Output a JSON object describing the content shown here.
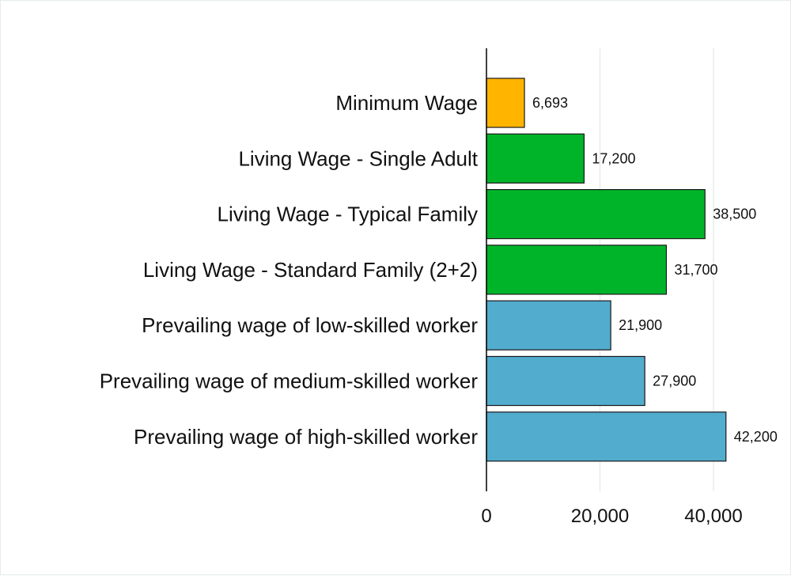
{
  "chart_data": {
    "type": "bar",
    "orientation": "horizontal",
    "title": "",
    "xlabel": "",
    "ylabel": "",
    "categories": [
      "Minimum Wage",
      "Living Wage - Single Adult",
      "Living Wage - Typical Family",
      "Living Wage - Standard Family (2+2)",
      "Prevailing wage of low-skilled worker",
      "Prevailing wage of medium-skilled worker",
      "Prevailing wage of high-skilled worker"
    ],
    "values": [
      6693,
      17200,
      38500,
      31700,
      21900,
      27900,
      42200
    ],
    "value_labels": [
      "6,693",
      "17,200",
      "38,500",
      "31,700",
      "21,900",
      "27,900",
      "42,200"
    ],
    "bar_colors": [
      "#ffb400",
      "#00b42a",
      "#00b42a",
      "#00b42a",
      "#52acce",
      "#52acce",
      "#52acce"
    ],
    "xlim": [
      0,
      50000
    ],
    "xticks": [
      0,
      20000,
      40000
    ],
    "xtick_labels": [
      "0",
      "20,000",
      "40,000"
    ],
    "grid": "vertical",
    "legend": "none"
  }
}
